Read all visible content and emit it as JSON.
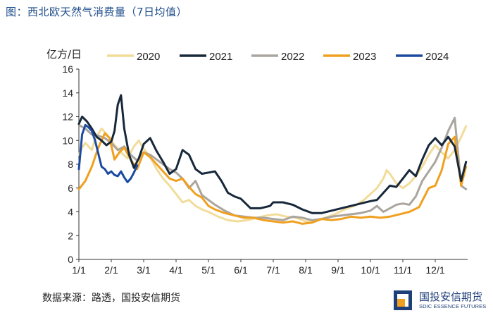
{
  "figure_title": "图：西北欧天然气消费量（7日均值）",
  "source_note": "数据来源：路透，国投安信期货",
  "brand": {
    "name_cn": "国投安信期货",
    "name_en": "SDIC ESSENCE FUTURES",
    "colors": {
      "navy": "#1f3f7a",
      "orange": "#f0a020"
    }
  },
  "chart_data": {
    "type": "line",
    "title": "",
    "ylabel": "亿方/日",
    "xlabel": "",
    "ylim": [
      0,
      16
    ],
    "yticks": [
      0,
      2,
      4,
      6,
      8,
      10,
      12,
      14,
      16
    ],
    "x_range_months": [
      0,
      12
    ],
    "xticks": [
      {
        "pos": 0,
        "label": "1/1"
      },
      {
        "pos": 1,
        "label": "2/1"
      },
      {
        "pos": 2,
        "label": "3/1"
      },
      {
        "pos": 3,
        "label": "4/1"
      },
      {
        "pos": 4,
        "label": "5/1"
      },
      {
        "pos": 5,
        "label": "6/1"
      },
      {
        "pos": 6,
        "label": "7/1"
      },
      {
        "pos": 7,
        "label": "8/1"
      },
      {
        "pos": 8,
        "label": "9/1"
      },
      {
        "pos": 9,
        "label": "10/1"
      },
      {
        "pos": 10,
        "label": "11/1"
      },
      {
        "pos": 11,
        "label": "12/1"
      }
    ],
    "legend_position": "top",
    "series": [
      {
        "name": "2020",
        "color": "#f2dc9a",
        "x": [
          0,
          0.1,
          0.2,
          0.3,
          0.4,
          0.5,
          0.7,
          0.9,
          1.1,
          1.3,
          1.5,
          1.7,
          1.85,
          2.0,
          2.2,
          2.4,
          2.6,
          2.8,
          3.0,
          3.2,
          3.4,
          3.6,
          3.8,
          4.0,
          4.3,
          4.6,
          4.9,
          5.2,
          5.5,
          5.8,
          6.1,
          6.4,
          6.7,
          7.0,
          7.3,
          7.6,
          7.9,
          8.2,
          8.5,
          8.8,
          9.0,
          9.2,
          9.4,
          9.5,
          9.6,
          9.8,
          10.0,
          10.2,
          10.4,
          10.6,
          10.8,
          11.0,
          11.2,
          11.4,
          11.6,
          11.8,
          11.95
        ],
        "y": [
          8.8,
          9.4,
          9.8,
          9.5,
          9.2,
          10.1,
          11.0,
          10.4,
          9.6,
          9.0,
          8.5,
          9.5,
          10.0,
          9.3,
          8.6,
          7.6,
          6.8,
          6.2,
          5.5,
          4.8,
          5.0,
          4.5,
          4.2,
          4.0,
          3.6,
          3.3,
          3.2,
          3.3,
          3.5,
          3.7,
          3.8,
          3.6,
          3.5,
          3.2,
          3.3,
          3.5,
          3.8,
          4.2,
          4.5,
          5.0,
          5.5,
          6.0,
          6.8,
          7.5,
          7.2,
          6.4,
          6.0,
          6.4,
          7.0,
          7.8,
          8.8,
          9.6,
          9.0,
          8.5,
          9.2,
          10.3,
          11.2
        ]
      },
      {
        "name": "2022",
        "color": "#aaa59f",
        "x": [
          0,
          0.2,
          0.4,
          0.6,
          0.8,
          1.0,
          1.2,
          1.4,
          1.6,
          1.8,
          2.0,
          2.2,
          2.4,
          2.6,
          2.8,
          3.0,
          3.2,
          3.4,
          3.6,
          3.8,
          4.0,
          4.2,
          4.5,
          4.8,
          5.1,
          5.4,
          5.7,
          6.0,
          6.3,
          6.6,
          6.9,
          7.2,
          7.5,
          7.8,
          8.1,
          8.4,
          8.7,
          9.0,
          9.2,
          9.4,
          9.6,
          9.8,
          10.0,
          10.2,
          10.4,
          10.6,
          10.8,
          11.0,
          11.2,
          11.4,
          11.6,
          11.8,
          11.95
        ],
        "y": [
          11.3,
          11.0,
          10.5,
          10.4,
          10.2,
          9.8,
          9.2,
          9.5,
          8.8,
          8.3,
          9.0,
          8.8,
          8.4,
          8.0,
          7.6,
          7.3,
          6.8,
          6.0,
          6.6,
          5.4,
          5.0,
          4.6,
          4.1,
          3.7,
          3.6,
          3.5,
          3.5,
          3.4,
          3.3,
          3.6,
          3.5,
          3.3,
          3.4,
          3.6,
          3.7,
          3.8,
          3.9,
          4.1,
          4.5,
          4.0,
          4.3,
          4.6,
          4.7,
          4.6,
          5.3,
          6.6,
          7.4,
          8.2,
          9.4,
          10.8,
          11.9,
          6.2,
          5.9
        ]
      },
      {
        "name": "2023",
        "color": "#f0a020",
        "x": [
          0,
          0.2,
          0.4,
          0.6,
          0.8,
          0.95,
          1.1,
          1.25,
          1.4,
          1.6,
          1.8,
          2.0,
          2.2,
          2.4,
          2.6,
          2.8,
          3.0,
          3.2,
          3.4,
          3.6,
          3.8,
          4.0,
          4.2,
          4.5,
          4.8,
          5.1,
          5.4,
          5.7,
          6.0,
          6.3,
          6.6,
          6.9,
          7.2,
          7.5,
          7.8,
          8.1,
          8.4,
          8.7,
          9.0,
          9.3,
          9.6,
          9.9,
          10.2,
          10.5,
          10.8,
          11.0,
          11.2,
          11.4,
          11.6,
          11.8,
          11.95
        ],
        "y": [
          5.9,
          6.6,
          7.8,
          9.4,
          10.6,
          10.2,
          8.4,
          9.0,
          9.4,
          8.4,
          7.6,
          9.0,
          8.6,
          8.0,
          7.4,
          6.8,
          6.6,
          6.8,
          6.1,
          5.5,
          5.2,
          4.5,
          4.2,
          3.9,
          3.7,
          3.5,
          3.5,
          3.3,
          3.2,
          3.1,
          3.2,
          3.0,
          3.1,
          3.4,
          3.3,
          3.4,
          3.6,
          3.5,
          3.6,
          3.5,
          3.6,
          3.8,
          4.0,
          4.4,
          6.0,
          6.2,
          7.5,
          9.7,
          10.3,
          6.2,
          7.8
        ]
      },
      {
        "name": "2021",
        "color": "#17283a",
        "x": [
          0,
          0.1,
          0.25,
          0.4,
          0.55,
          0.7,
          0.85,
          1.0,
          1.1,
          1.2,
          1.3,
          1.4,
          1.55,
          1.7,
          1.85,
          2.0,
          2.2,
          2.4,
          2.6,
          2.8,
          3.0,
          3.1,
          3.2,
          3.4,
          3.6,
          3.8,
          4.0,
          4.2,
          4.4,
          4.6,
          4.8,
          5.0,
          5.3,
          5.6,
          5.9,
          6.0,
          6.3,
          6.6,
          6.9,
          7.2,
          7.5,
          7.8,
          8.1,
          8.4,
          8.7,
          9.0,
          9.2,
          9.4,
          9.6,
          9.8,
          10.0,
          10.2,
          10.4,
          10.6,
          10.8,
          11.0,
          11.2,
          11.4,
          11.6,
          11.8,
          11.95
        ],
        "y": [
          11.4,
          12.0,
          11.6,
          11.0,
          10.3,
          10.0,
          9.6,
          9.9,
          10.8,
          13.0,
          13.8,
          11.0,
          8.8,
          7.7,
          8.5,
          9.7,
          10.2,
          9.1,
          8.2,
          7.2,
          7.6,
          8.4,
          9.2,
          8.8,
          7.6,
          7.2,
          7.3,
          7.4,
          6.6,
          5.6,
          5.3,
          5.1,
          4.3,
          4.3,
          4.5,
          4.8,
          4.8,
          4.6,
          4.2,
          3.9,
          3.9,
          4.1,
          4.3,
          4.5,
          4.7,
          4.9,
          5.0,
          5.6,
          6.2,
          6.1,
          6.8,
          7.5,
          7.0,
          8.4,
          9.6,
          10.2,
          9.6,
          10.3,
          9.5,
          6.6,
          8.2
        ]
      },
      {
        "name": "2024",
        "color": "#1c4aa0",
        "x": [
          0,
          0.1,
          0.2,
          0.3,
          0.4,
          0.5,
          0.6,
          0.7,
          0.8,
          0.9,
          1.0,
          1.1,
          1.2,
          1.3,
          1.4,
          1.5,
          1.6,
          1.7,
          1.8
        ],
        "y": [
          7.6,
          10.5,
          11.3,
          11.1,
          10.8,
          10.0,
          8.9,
          7.8,
          7.6,
          7.2,
          7.4,
          7.1,
          7.0,
          7.4,
          6.9,
          6.5,
          6.8,
          7.3,
          7.9
        ]
      }
    ]
  }
}
